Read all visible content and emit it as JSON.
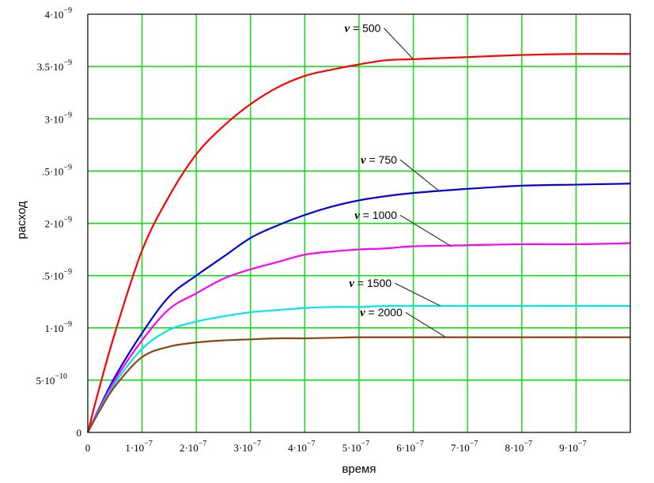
{
  "chart_data": {
    "type": "line",
    "xlabel": "время",
    "ylabel": "расход",
    "xlim": [
      0,
      1e-06
    ],
    "ylim": [
      0,
      4e-09
    ],
    "grid": true,
    "x_ticks": [
      {
        "value": 0,
        "label": "0"
      },
      {
        "value": 1e-07,
        "label": "1·10",
        "exp": "−7"
      },
      {
        "value": 2e-07,
        "label": "2·10",
        "exp": "−7"
      },
      {
        "value": 3e-07,
        "label": "3·10",
        "exp": "−7"
      },
      {
        "value": 4e-07,
        "label": "4·10",
        "exp": "−7"
      },
      {
        "value": 5e-07,
        "label": "5·10",
        "exp": "−7"
      },
      {
        "value": 6e-07,
        "label": "6·10",
        "exp": "−7"
      },
      {
        "value": 7e-07,
        "label": "7·10",
        "exp": "−7"
      },
      {
        "value": 8e-07,
        "label": "8·10",
        "exp": "−7"
      },
      {
        "value": 9e-07,
        "label": "9·10",
        "exp": "−7"
      }
    ],
    "y_ticks": [
      {
        "value": 0,
        "label": "0",
        "exp": ""
      },
      {
        "value": 5e-10,
        "label": "5·10",
        "exp": "−10"
      },
      {
        "value": 1e-09,
        "label": "1·10",
        "exp": "−9"
      },
      {
        "value": 1.5e-09,
        "label": ".5·10",
        "exp": "−9"
      },
      {
        "value": 2e-09,
        "label": "2·10",
        "exp": "−9"
      },
      {
        "value": 2.5e-09,
        "label": ".5·10",
        "exp": "−9"
      },
      {
        "value": 3e-09,
        "label": "3·10",
        "exp": "−9"
      },
      {
        "value": 3.5e-09,
        "label": "3.5·10",
        "exp": "−9"
      },
      {
        "value": 4e-09,
        "label": "4·10",
        "exp": "−9"
      }
    ],
    "series": [
      {
        "name": "ν = 500",
        "symbol": "ν",
        "value_label": "500",
        "color": "#ff0000",
        "x": [
          0,
          2e-08,
          5e-08,
          1e-07,
          1.5e-07,
          2e-07,
          2.5e-07,
          3e-07,
          3.5e-07,
          4e-07,
          4.5e-07,
          5e-07,
          5.5e-07,
          6e-07,
          7e-07,
          8e-07,
          9e-07,
          1e-06
        ],
        "y": [
          0,
          4e-10,
          9.5e-10,
          1.74e-09,
          2.26e-09,
          2.66e-09,
          2.93e-09,
          3.14e-09,
          3.3e-09,
          3.41e-09,
          3.47e-09,
          3.52e-09,
          3.56e-09,
          3.57e-09,
          3.59e-09,
          3.61e-09,
          3.62e-09,
          3.62e-09
        ]
      },
      {
        "name": "ν = 750",
        "symbol": "ν",
        "value_label": "750",
        "color": "#0000e0",
        "x": [
          0,
          2e-08,
          5e-08,
          1e-07,
          1.5e-07,
          2e-07,
          2.5e-07,
          3e-07,
          3.5e-07,
          4e-07,
          4.5e-07,
          5e-07,
          5.5e-07,
          6e-07,
          7e-07,
          8e-07,
          9e-07,
          1e-06
        ],
        "y": [
          0,
          2.2e-10,
          5.3e-10,
          9.5e-10,
          1.3e-09,
          1.5e-09,
          1.68e-09,
          1.86e-09,
          1.98e-09,
          2.08e-09,
          2.16e-09,
          2.22e-09,
          2.26e-09,
          2.29e-09,
          2.33e-09,
          2.36e-09,
          2.37e-09,
          2.38e-09
        ]
      },
      {
        "name": "ν = 1000",
        "symbol": "ν",
        "value_label": "1000",
        "color": "#ff00ff",
        "x": [
          0,
          2e-08,
          5e-08,
          1e-07,
          1.5e-07,
          2e-07,
          2.5e-07,
          3e-07,
          3.5e-07,
          4e-07,
          4.5e-07,
          5e-07,
          5.5e-07,
          6e-07,
          7e-07,
          8e-07,
          9e-07,
          1e-06
        ],
        "y": [
          0,
          2.1e-10,
          5e-10,
          8.8e-10,
          1.18e-09,
          1.33e-09,
          1.47e-09,
          1.56e-09,
          1.63e-09,
          1.7e-09,
          1.73e-09,
          1.75e-09,
          1.76e-09,
          1.78e-09,
          1.79e-09,
          1.8e-09,
          1.8e-09,
          1.81e-09
        ]
      },
      {
        "name": "ν = 1500",
        "symbol": "ν",
        "value_label": "1500",
        "color": "#00e8e8",
        "x": [
          0,
          2e-08,
          5e-08,
          1e-07,
          1.5e-07,
          2e-07,
          2.5e-07,
          3e-07,
          3.5e-07,
          4e-07,
          4.5e-07,
          5e-07,
          5.5e-07,
          6e-07,
          7e-07,
          8e-07,
          9e-07,
          1e-06
        ],
        "y": [
          0,
          2e-10,
          4.7e-10,
          8e-10,
          9.8e-10,
          1.06e-09,
          1.11e-09,
          1.15e-09,
          1.17e-09,
          1.19e-09,
          1.2e-09,
          1.2e-09,
          1.21e-09,
          1.21e-09,
          1.21e-09,
          1.21e-09,
          1.21e-09,
          1.21e-09
        ]
      },
      {
        "name": "ν = 2000",
        "symbol": "ν",
        "value_label": "2000",
        "color": "#8b4513",
        "x": [
          0,
          2e-08,
          5e-08,
          1e-07,
          1.5e-07,
          2e-07,
          2.5e-07,
          3e-07,
          3.5e-07,
          4e-07,
          4.5e-07,
          5e-07,
          5.5e-07,
          6e-07,
          7e-07,
          8e-07,
          9e-07,
          1e-06
        ],
        "y": [
          0,
          1.9e-10,
          4.4e-10,
          7.2e-10,
          8.2e-10,
          8.6e-10,
          8.8e-10,
          8.9e-10,
          9e-10,
          9e-10,
          9.05e-10,
          9.1e-10,
          9.1e-10,
          9.1e-10,
          9.1e-10,
          9.1e-10,
          9.1e-10,
          9.1e-10
        ]
      }
    ],
    "annotations": [
      {
        "series": 0,
        "text_x": 5.4e-07,
        "text_y": 3.83e-09,
        "end_x": 6e-07,
        "end_y": 3.57e-09
      },
      {
        "series": 1,
        "text_x": 5.7e-07,
        "text_y": 2.57e-09,
        "end_x": 6.5e-07,
        "end_y": 2.3e-09
      },
      {
        "series": 2,
        "text_x": 5.7e-07,
        "text_y": 2.04e-09,
        "end_x": 6.7e-07,
        "end_y": 1.78e-09
      },
      {
        "series": 3,
        "text_x": 5.6e-07,
        "text_y": 1.39e-09,
        "end_x": 6.5e-07,
        "end_y": 1.21e-09
      },
      {
        "series": 4,
        "text_x": 5.8e-07,
        "text_y": 1.11e-09,
        "end_x": 6.6e-07,
        "end_y": 9.1e-10
      }
    ],
    "colors": {
      "grid": "#00dd00",
      "frame": "#000000",
      "pointer": "#333333"
    }
  }
}
